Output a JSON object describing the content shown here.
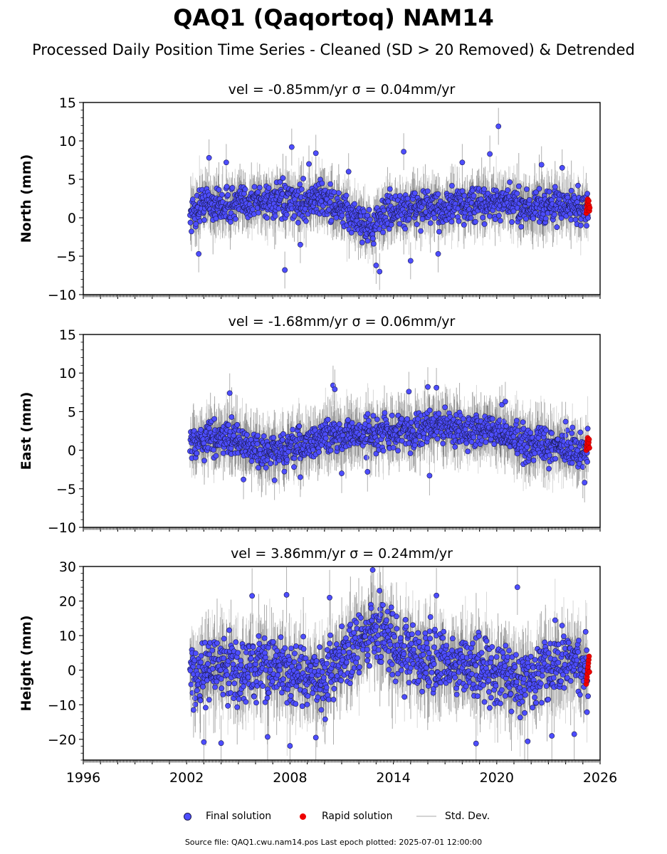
{
  "title": "QAQ1 (Qaqortoq) NAM14",
  "subtitle": "Processed Daily Position Time Series - Cleaned (SD > 20 Removed) & Detrended",
  "footer": "Source file: QAQ1.cwu.nam14.pos  Last epoch plotted: 2025-07-01 12:00:00",
  "colors": {
    "final": "#4d4dff",
    "final_edge": "#1a1a4d",
    "rapid": "#ee0000",
    "stddev": "#b0b0b0"
  },
  "legend": {
    "final": "Final solution",
    "rapid": "Rapid solution",
    "stddev": "Std. Dev."
  },
  "chart_data": [
    {
      "type": "scatter",
      "panel": "north",
      "title": "vel = -0.85mm/yr   σ = 0.04mm/yr",
      "ylabel": "North (mm)",
      "xlim": [
        1996,
        2026
      ],
      "ylim": [
        -10,
        15
      ],
      "yticks": [
        -10,
        -5,
        0,
        5,
        10,
        15
      ],
      "x_range": [
        2002.2,
        2025.3
      ],
      "spread": 1.6,
      "sd_base": 1.5,
      "series": [
        {
          "name": "Final solution",
          "x": [
            2002.3,
            2003.0,
            2004.0,
            2005.0,
            2006.0,
            2007.0,
            2008.0,
            2009.0,
            2010.0,
            2011.0,
            2012.0,
            2012.8,
            2013.5,
            2014.5,
            2015.5,
            2016.5,
            2017.5,
            2018.5,
            2019.5,
            2020.5,
            2021.5,
            2022.5,
            2023.5,
            2024.5,
            2025.3
          ],
          "y": [
            0.5,
            2.0,
            1.5,
            1.8,
            2.2,
            2.3,
            1.8,
            2.2,
            2.6,
            0.8,
            -0.2,
            -1.5,
            0.8,
            1.0,
            1.5,
            1.0,
            1.5,
            1.6,
            1.8,
            1.8,
            1.5,
            1.5,
            1.6,
            1.5,
            1.2
          ]
        },
        {
          "name": "Rapid solution",
          "x": [
            2025.2,
            2025.22,
            2025.24,
            2025.26,
            2025.28,
            2025.3,
            2025.32,
            2025.34,
            2025.36,
            2025.38,
            2025.4
          ],
          "y": [
            0.6,
            1.0,
            1.5,
            2.0,
            2.4,
            1.8,
            1.2,
            2.2,
            1.6,
            0.9,
            1.3
          ]
        },
        {
          "name": "Outliers",
          "x": [
            2002.7,
            2003.3,
            2004.3,
            2007.7,
            2008.1,
            2008.6,
            2009.1,
            2009.5,
            2011.4,
            2013.0,
            2013.2,
            2014.6,
            2015.0,
            2016.6,
            2018.0,
            2019.6,
            2020.1,
            2022.6,
            2023.8
          ],
          "y": [
            -4.7,
            7.8,
            7.2,
            -6.8,
            9.2,
            -3.5,
            7.0,
            8.4,
            6.0,
            -6.2,
            -7.0,
            8.6,
            -5.6,
            -4.7,
            7.2,
            8.3,
            11.9,
            6.9,
            6.5
          ]
        }
      ]
    },
    {
      "type": "scatter",
      "panel": "east",
      "title": "vel = -1.68mm/yr   σ = 0.06mm/yr",
      "ylabel": "East (mm)",
      "xlim": [
        1996,
        2026
      ],
      "ylim": [
        -10,
        15
      ],
      "yticks": [
        -10,
        -5,
        0,
        5,
        10,
        15
      ],
      "x_range": [
        2002.2,
        2025.3
      ],
      "spread": 1.5,
      "sd_base": 1.6,
      "series": [
        {
          "name": "Final solution",
          "x": [
            2002.3,
            2003.0,
            2004.0,
            2005.0,
            2006.0,
            2007.0,
            2008.0,
            2009.0,
            2010.0,
            2011.0,
            2012.0,
            2013.0,
            2014.0,
            2015.0,
            2016.0,
            2017.0,
            2018.0,
            2019.0,
            2020.0,
            2021.0,
            2022.0,
            2023.0,
            2024.0,
            2025.3
          ],
          "y": [
            0.8,
            1.5,
            2.0,
            1.0,
            0.0,
            -0.2,
            0.0,
            0.8,
            1.8,
            2.0,
            2.0,
            2.2,
            2.5,
            2.5,
            3.0,
            3.2,
            2.8,
            2.5,
            2.2,
            1.5,
            0.8,
            0.5,
            0.2,
            -0.2
          ]
        },
        {
          "name": "Rapid solution",
          "x": [
            2025.2,
            2025.22,
            2025.24,
            2025.26,
            2025.28,
            2025.3,
            2025.32,
            2025.34,
            2025.36,
            2025.38
          ],
          "y": [
            0.0,
            0.4,
            0.8,
            1.2,
            1.6,
            0.2,
            0.6,
            1.0,
            1.4,
            0.3
          ]
        },
        {
          "name": "Outliers",
          "x": [
            2004.5,
            2005.3,
            2007.1,
            2008.6,
            2010.5,
            2010.6,
            2011.0,
            2012.5,
            2014.9,
            2016.0,
            2016.5,
            2016.1,
            2020.3,
            2020.5,
            2024.0,
            2025.1
          ],
          "y": [
            7.4,
            -3.8,
            -3.9,
            -3.5,
            8.4,
            7.9,
            -3.0,
            -2.8,
            7.6,
            8.2,
            8.1,
            -3.3,
            5.9,
            6.3,
            3.7,
            -4.2
          ]
        }
      ]
    },
    {
      "type": "scatter",
      "panel": "height",
      "title": "vel = 3.86mm/yr   σ = 0.24mm/yr",
      "ylabel": "Height (mm)",
      "xlim": [
        1996,
        2026
      ],
      "ylim": [
        -26,
        30
      ],
      "yticks": [
        -20,
        -10,
        0,
        10,
        20,
        30
      ],
      "x_range": [
        2002.2,
        2025.3
      ],
      "spread": 6.5,
      "sd_base": 5.0,
      "series": [
        {
          "name": "Final solution",
          "x": [
            2002.3,
            2003.0,
            2004.0,
            2005.0,
            2006.0,
            2007.0,
            2008.0,
            2009.0,
            2010.0,
            2011.0,
            2012.0,
            2012.8,
            2013.5,
            2014.5,
            2015.5,
            2016.5,
            2017.5,
            2018.5,
            2019.5,
            2020.5,
            2021.5,
            2022.5,
            2023.5,
            2024.5,
            2025.3
          ],
          "y": [
            0.0,
            -1.0,
            1.0,
            0.0,
            0.5,
            2.0,
            -2.0,
            -3.0,
            -2.0,
            5.0,
            6.0,
            12.0,
            10.0,
            6.0,
            3.0,
            2.0,
            2.0,
            1.0,
            0.0,
            -1.0,
            -3.0,
            -2.0,
            1.0,
            3.0,
            0.0
          ]
        },
        {
          "name": "Rapid solution",
          "x": [
            2025.2,
            2025.22,
            2025.24,
            2025.26,
            2025.28,
            2025.3,
            2025.32,
            2025.34,
            2025.36,
            2025.38
          ],
          "y": [
            -4.0,
            -3.0,
            -2.0,
            -1.0,
            0.0,
            1.0,
            2.0,
            3.0,
            4.0,
            -0.5
          ]
        },
        {
          "name": "Outliers",
          "x": [
            2002.4,
            2003.0,
            2004.0,
            2005.8,
            2006.7,
            2007.8,
            2008.0,
            2009.5,
            2010.3,
            2012.8,
            2013.2,
            2016.5,
            2018.8,
            2021.2,
            2021.8,
            2023.2,
            2024.5
          ],
          "y": [
            -11.5,
            -20.8,
            -21.1,
            21.5,
            -19.3,
            21.8,
            -21.9,
            -19.5,
            21.0,
            29.0,
            23.0,
            21.6,
            -21.2,
            24.0,
            -20.6,
            -19.0,
            -18.5
          ]
        }
      ]
    }
  ],
  "xtick_labels": [
    1996,
    2002,
    2008,
    2014,
    2020,
    2026
  ]
}
